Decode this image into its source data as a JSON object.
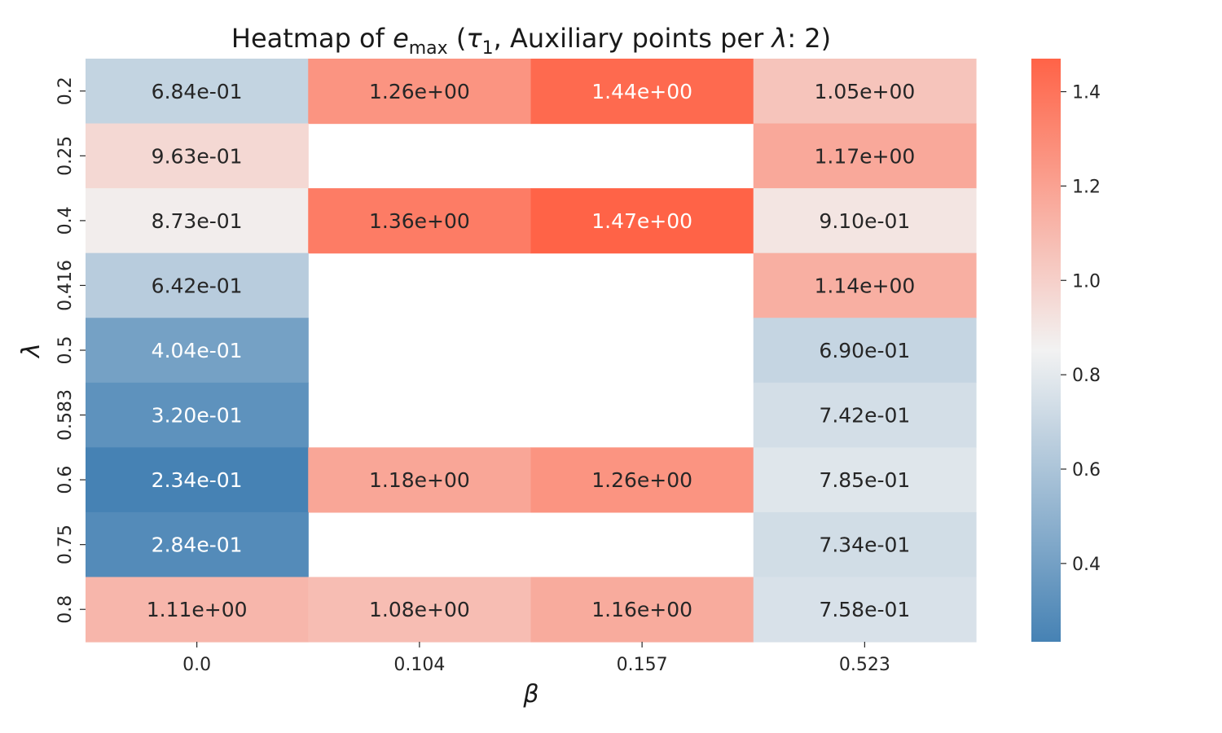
{
  "chart_data": {
    "type": "heatmap",
    "title": {
      "prefix": "Heatmap of ",
      "var": "e",
      "var_sub": "max",
      "paren_open": " (",
      "tau": "τ",
      "tau_sub": "1",
      "rest": ", Auxiliary points per ",
      "lambda": "λ",
      "suffix": ": 2)"
    },
    "xlabel": "β",
    "ylabel": "λ",
    "x_categories": [
      "0.0",
      "0.104",
      "0.157",
      "0.523"
    ],
    "y_categories": [
      "0.2",
      "0.25",
      "0.4",
      "0.416",
      "0.5",
      "0.583",
      "0.6",
      "0.75",
      "0.8"
    ],
    "values": [
      [
        0.684,
        1.26,
        1.44,
        1.05
      ],
      [
        0.963,
        null,
        null,
        1.17
      ],
      [
        0.873,
        1.36,
        1.47,
        0.91
      ],
      [
        0.642,
        null,
        null,
        1.14
      ],
      [
        0.404,
        null,
        null,
        0.69
      ],
      [
        0.32,
        null,
        null,
        0.742
      ],
      [
        0.234,
        1.18,
        1.26,
        0.785
      ],
      [
        0.284,
        null,
        null,
        0.734
      ],
      [
        1.11,
        1.08,
        1.16,
        0.758
      ]
    ],
    "labels": [
      [
        "6.84e-01",
        "1.26e+00",
        "1.44e+00",
        "1.05e+00"
      ],
      [
        "9.63e-01",
        "",
        "",
        "1.17e+00"
      ],
      [
        "8.73e-01",
        "1.36e+00",
        "1.47e+00",
        "9.10e-01"
      ],
      [
        "6.42e-01",
        "",
        "",
        "1.14e+00"
      ],
      [
        "4.04e-01",
        "",
        "",
        "6.90e-01"
      ],
      [
        "3.20e-01",
        "",
        "",
        "7.42e-01"
      ],
      [
        "2.34e-01",
        "1.18e+00",
        "1.26e+00",
        "7.85e-01"
      ],
      [
        "2.84e-01",
        "",
        "",
        "7.34e-01"
      ],
      [
        "1.11e+00",
        "1.08e+00",
        "1.16e+00",
        "7.58e-01"
      ]
    ],
    "colorbar": {
      "vmin": 0.234,
      "vmax": 1.47,
      "center": 0.852,
      "ticks": [
        0.4,
        0.6,
        0.8,
        1.0,
        1.2,
        1.4
      ],
      "tick_labels": [
        "0.4",
        "0.6",
        "0.8",
        "1.0",
        "1.2",
        "1.4"
      ]
    },
    "colors": {
      "low": "#4682b4",
      "mid": "#f2f2f2",
      "high": "#ff6347"
    },
    "grid": false,
    "legend": "colorbar-right"
  }
}
